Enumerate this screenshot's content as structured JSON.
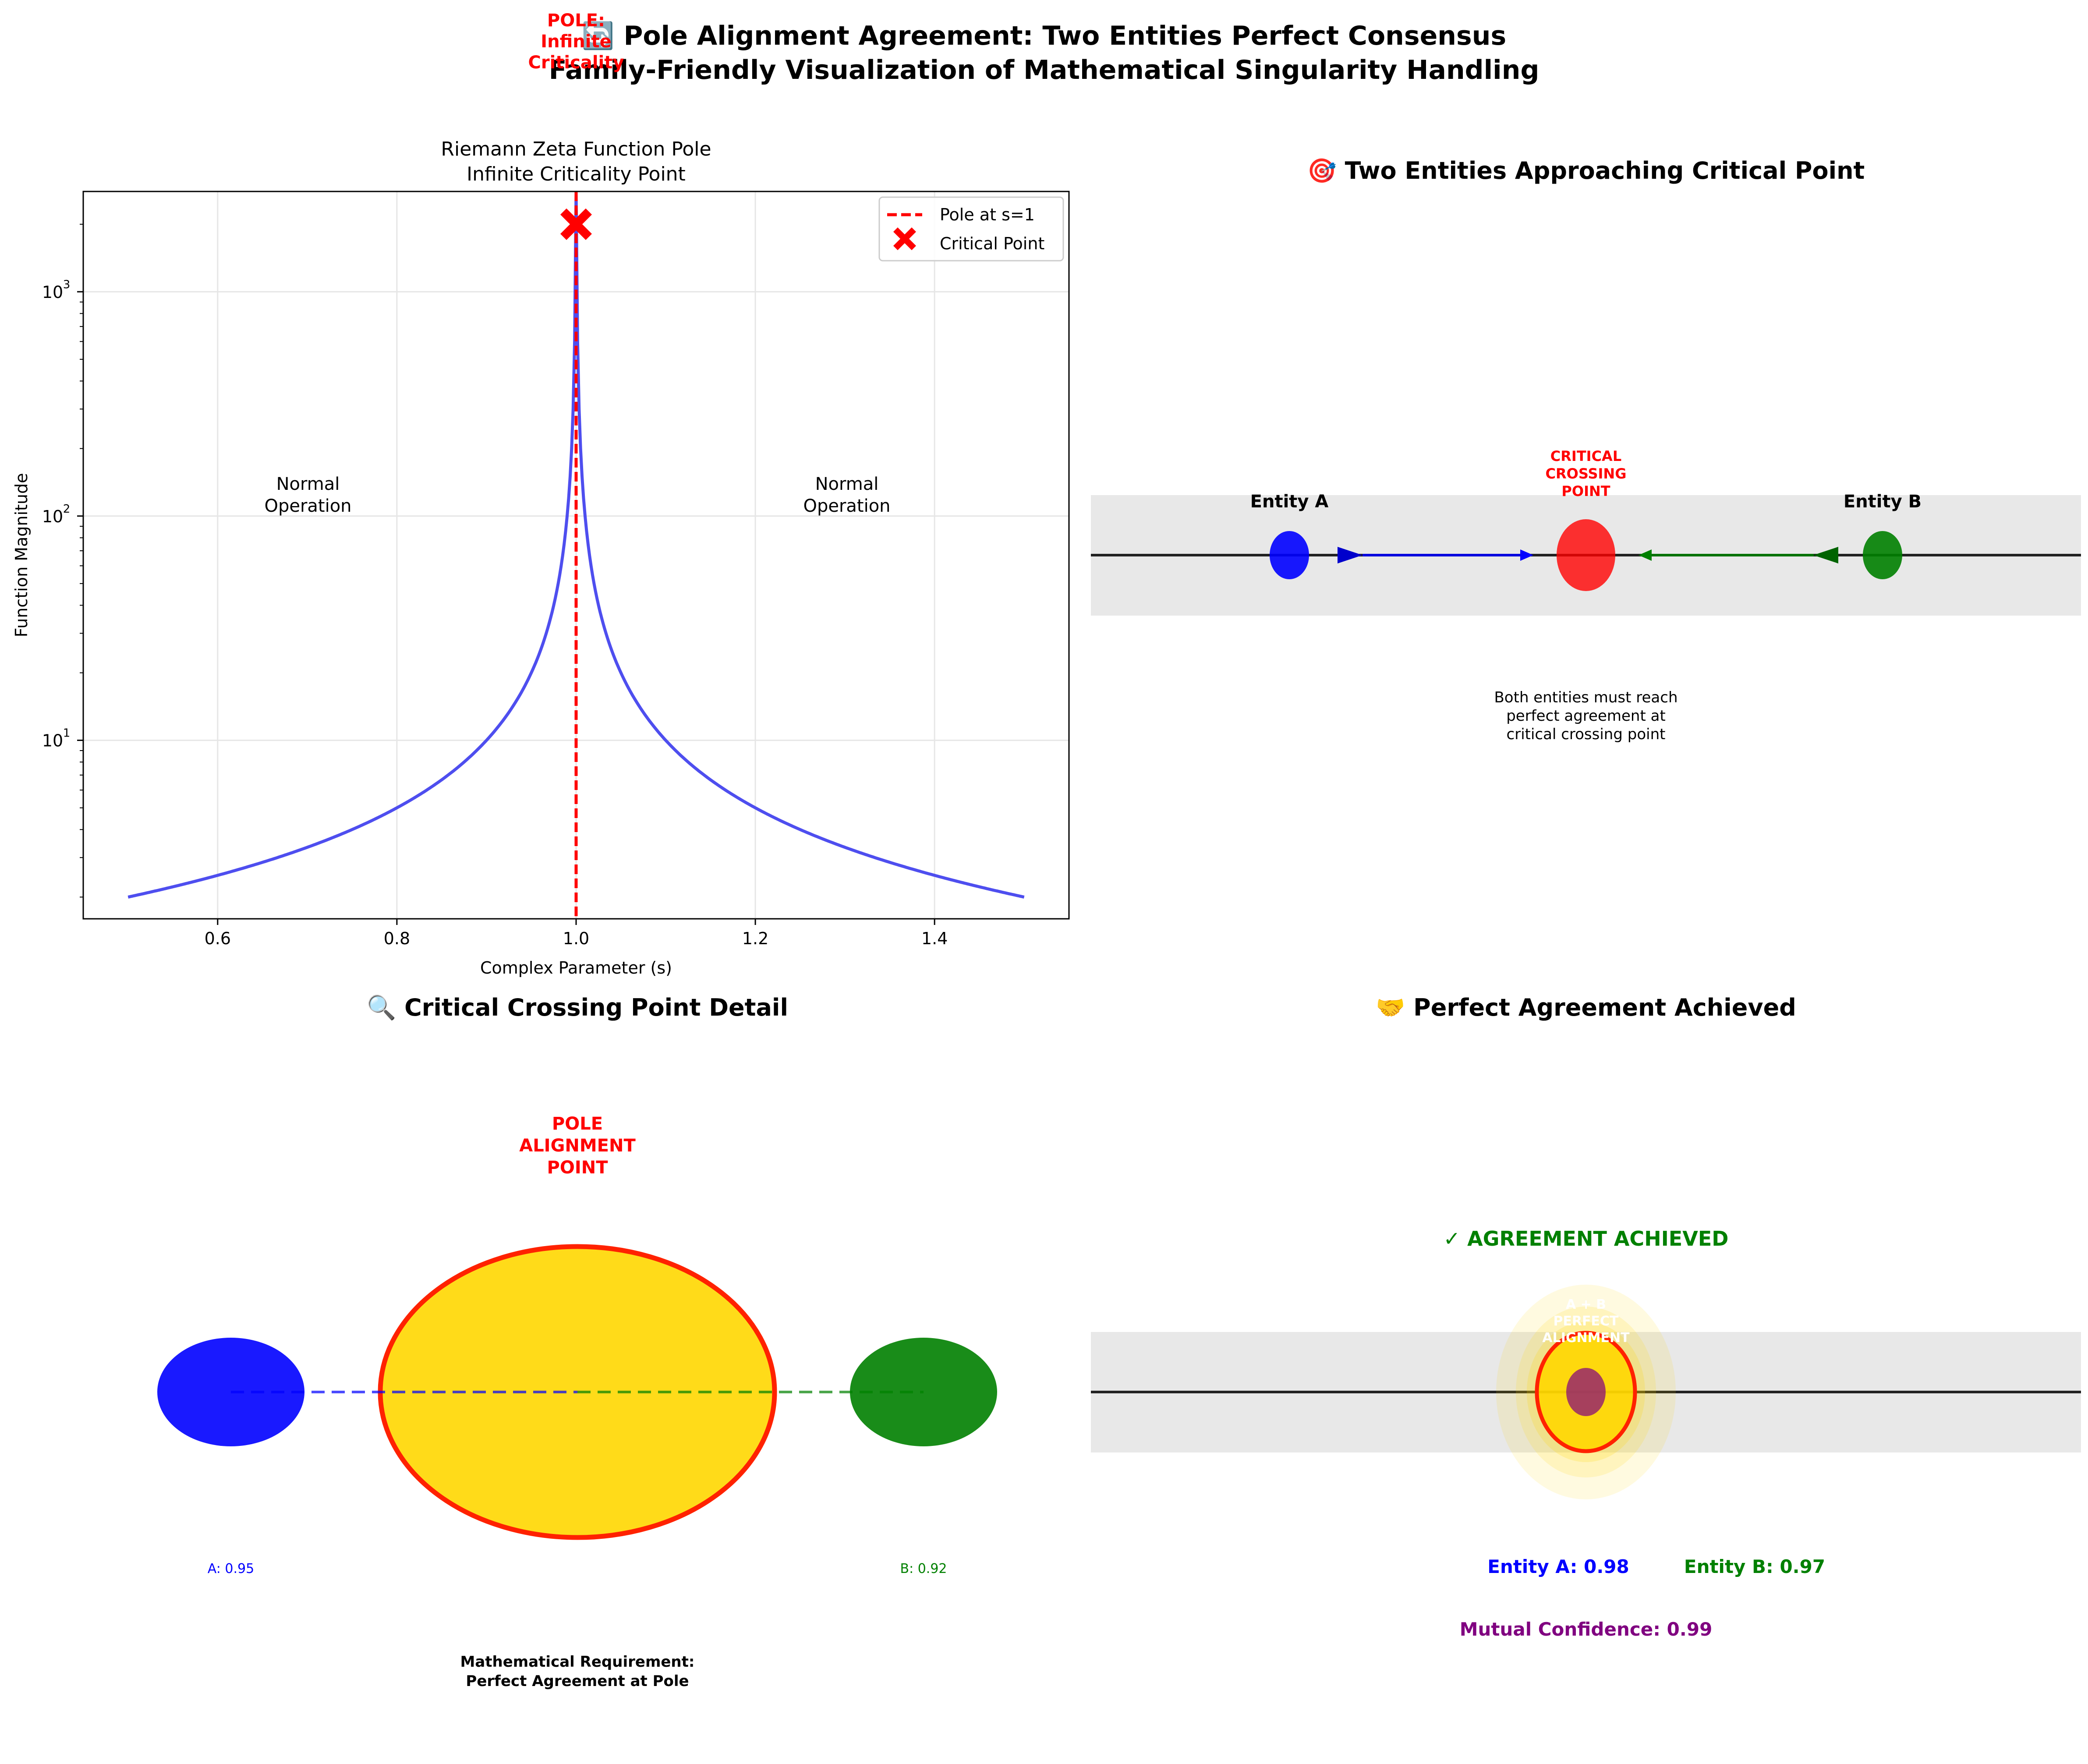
{
  "figure": {
    "title_line1": "🔄 Pole Alignment Agreement: Two Entities Perfect Consensus",
    "title_line2": "Family-Friendly Visualization of Mathematical Singularity Handling"
  },
  "panels": {
    "pole": {
      "title_line1": "Riemann Zeta Function Pole",
      "title_line2": "Infinite Criticality Point",
      "pole_label_lines": [
        "POLE:",
        "Infinite",
        "Criticality"
      ],
      "left_annotation": [
        "Normal",
        "Operation"
      ],
      "right_annotation": [
        "Normal",
        "Operation"
      ]
    },
    "approach": {
      "title": "🎯 Two Entities Approaching Critical Point",
      "entity_a_label": "Entity A",
      "entity_b_label": "Entity B",
      "critical_label": [
        "CRITICAL",
        "CROSSING",
        "POINT"
      ],
      "note": [
        "Both entities must reach",
        "perfect agreement at",
        "critical crossing point"
      ]
    },
    "detail": {
      "title": "🔍 Critical Crossing Point Detail",
      "pole_label": [
        "POLE",
        "ALIGNMENT",
        "POINT"
      ],
      "a_conf": "A: 0.95",
      "b_conf": "B: 0.92",
      "requirement": [
        "Mathematical Requirement:",
        "Perfect Agreement at Pole"
      ]
    },
    "agreement": {
      "title": "🤝 Perfect Agreement Achieved",
      "achieved": "✓ AGREEMENT ACHIEVED",
      "merged_label": [
        "A + B",
        "PERFECT",
        "ALIGNMENT"
      ],
      "entity_a": "Entity A: 0.98",
      "entity_b": "Entity B: 0.97",
      "mutual": "Mutual Confidence: 0.99"
    }
  },
  "colors": {
    "entity_a": "#0000ff",
    "entity_b": "#008000",
    "critical": "#ff0000",
    "gold": "#ffd700",
    "purple": "#800080",
    "band": "#e8e8e8",
    "curve": "#4444ee"
  },
  "chart_data": {
    "type": "line",
    "xlabel": "Complex Parameter (s)",
    "ylabel": "Function Magnitude",
    "xlim": [
      0.45,
      1.55
    ],
    "ylim": [
      1.6,
      2800
    ],
    "yscale": "log",
    "xticks": [
      0.6,
      0.8,
      1.0,
      1.2,
      1.4
    ],
    "xtick_labels": [
      "0.6",
      "0.8",
      "1.0",
      "1.2",
      "1.4"
    ],
    "yticks": [
      10,
      100,
      1000
    ],
    "ytick_labels": [
      "10",
      "10",
      "10"
    ],
    "ytick_exponents": [
      "1",
      "2",
      "3"
    ],
    "grid": true,
    "legend_position": "top-right",
    "series": [
      {
        "name": "",
        "formula": "y = 1 / |s - 1|",
        "x_range": [
          0.5,
          1.5
        ],
        "color": "#4444ee"
      }
    ],
    "pole_line": {
      "name": "Pole at s=1",
      "x": 1.0,
      "color": "#ff0000"
    },
    "critical_point": {
      "name": "Critical Point",
      "x": 1.0,
      "y": 2000,
      "color": "#ff0000"
    },
    "annotations": [
      {
        "x": 0.7,
        "y": 110
      },
      {
        "x": 1.3,
        "y": 110
      }
    ]
  }
}
